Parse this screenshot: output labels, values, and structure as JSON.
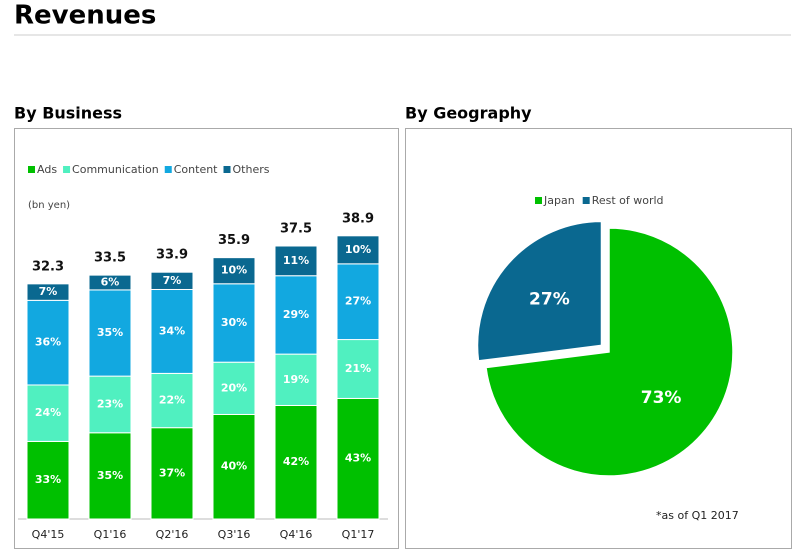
{
  "title": "Revenues",
  "chart_data": [
    {
      "type": "bar",
      "title": "By Business",
      "unit_label": "(bn yen)",
      "categories": [
        "Q4'15",
        "Q1'16",
        "Q2'16",
        "Q3'16",
        "Q4'16",
        "Q1'17"
      ],
      "totals": [
        32.3,
        33.5,
        33.9,
        35.9,
        37.5,
        38.9
      ],
      "series": [
        {
          "name": "Ads",
          "color": "#00c000",
          "values": [
            33,
            35,
            37,
            40,
            42,
            43
          ],
          "value_labels": [
            "33%",
            "35%",
            "37%",
            "40%",
            "42%",
            "43%"
          ]
        },
        {
          "name": "Communication",
          "color": "#50f0c0",
          "values": [
            24,
            23,
            22,
            20,
            19,
            21
          ],
          "value_labels": [
            "24%",
            "23%",
            "22%",
            "20%",
            "19%",
            "21%"
          ]
        },
        {
          "name": "Content",
          "color": "#12a8e0",
          "values": [
            36,
            35,
            34,
            30,
            29,
            27
          ],
          "value_labels": [
            "36%",
            "35%",
            "34%",
            "30%",
            "29%",
            "27%"
          ]
        },
        {
          "name": "Others",
          "color": "#0a6890",
          "values": [
            7,
            6,
            7,
            10,
            11,
            10
          ],
          "value_labels": [
            "7%",
            "6%",
            "7%",
            "10%",
            "11%",
            "10%"
          ]
        }
      ]
    },
    {
      "type": "pie",
      "title": "By Geography",
      "categories": [
        "Japan",
        "Rest of world"
      ],
      "values": [
        73,
        27
      ],
      "value_labels": [
        "73%",
        "27%"
      ],
      "colors": [
        "#00c000",
        "#0a6890"
      ],
      "note": "*as of Q1 2017"
    }
  ]
}
